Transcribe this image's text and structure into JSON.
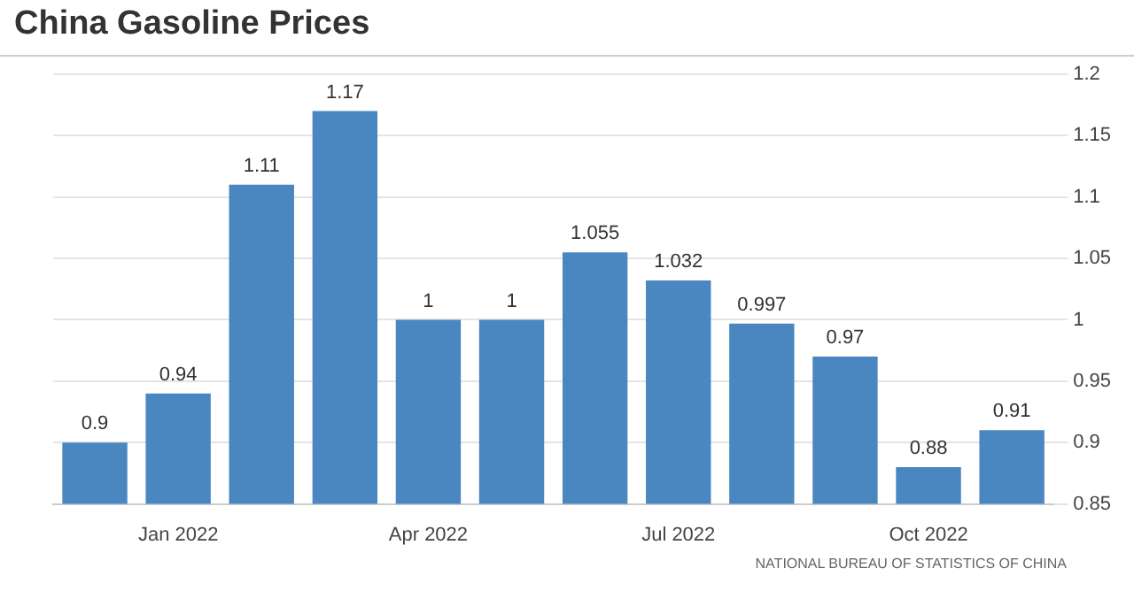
{
  "chart_data": {
    "type": "bar",
    "title": "China Gasoline Prices",
    "categories": [
      null,
      "Jan 2022",
      null,
      null,
      "Apr 2022",
      null,
      null,
      "Jul 2022",
      null,
      null,
      "Oct 2022",
      null
    ],
    "values": [
      0.9,
      0.94,
      1.11,
      1.17,
      1,
      1,
      1.055,
      1.032,
      0.997,
      0.97,
      0.88,
      0.91
    ],
    "color": "#4a86c0",
    "ylim": [
      0.85,
      1.2
    ],
    "yticks": [
      0.85,
      0.9,
      0.95,
      1,
      1.05,
      1.1,
      1.15,
      1.2
    ],
    "grid": "y",
    "data_labels": true,
    "annotations": [
      "NATIONAL BUREAU OF STATISTICS OF CHINA"
    ]
  }
}
